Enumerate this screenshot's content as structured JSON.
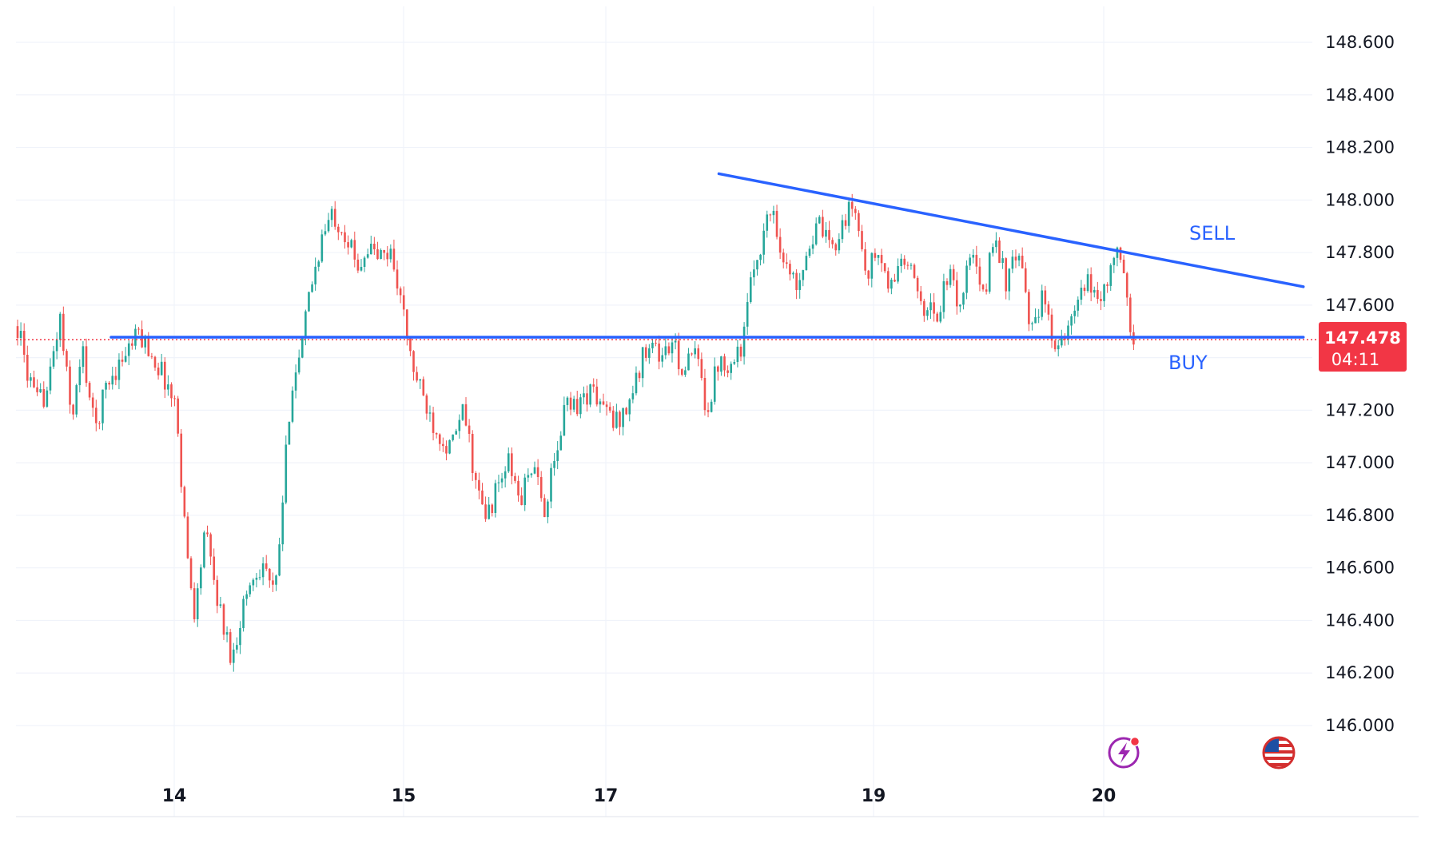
{
  "chart_data": {
    "type": "candlestick",
    "x_ticks": [
      "14",
      "15",
      "17",
      "19",
      "20"
    ],
    "y_ticks": [
      "148.600",
      "148.400",
      "148.200",
      "148.000",
      "147.800",
      "147.600",
      "147.400",
      "147.200",
      "147.000",
      "146.800",
      "146.600",
      "146.400",
      "146.200",
      "146.000"
    ],
    "ylim": [
      145.93,
      148.82
    ],
    "grid": true,
    "price_path": [
      [
        0.0,
        147.52
      ],
      [
        0.4,
        147.35
      ],
      [
        0.8,
        147.22
      ],
      [
        1.3,
        147.28
      ],
      [
        1.8,
        147.56
      ],
      [
        2.3,
        147.17
      ],
      [
        2.8,
        147.42
      ],
      [
        3.3,
        147.12
      ],
      [
        3.8,
        147.3
      ],
      [
        4.5,
        147.4
      ],
      [
        5.2,
        147.49
      ],
      [
        5.7,
        147.42
      ],
      [
        6.3,
        147.32
      ],
      [
        6.8,
        147.2
      ],
      [
        7.0,
        146.95
      ],
      [
        7.3,
        146.6
      ],
      [
        7.6,
        146.42
      ],
      [
        8.0,
        146.75
      ],
      [
        8.4,
        146.55
      ],
      [
        8.8,
        146.38
      ],
      [
        9.2,
        146.25
      ],
      [
        9.6,
        146.45
      ],
      [
        10.0,
        146.55
      ],
      [
        10.5,
        146.63
      ],
      [
        11.0,
        146.48
      ],
      [
        11.3,
        146.8
      ],
      [
        11.7,
        147.3
      ],
      [
        12.1,
        147.4
      ],
      [
        12.5,
        147.65
      ],
      [
        13.0,
        147.85
      ],
      [
        13.5,
        147.95
      ],
      [
        14.0,
        147.88
      ],
      [
        14.5,
        147.75
      ],
      [
        15.0,
        147.82
      ],
      [
        15.5,
        147.78
      ],
      [
        16.0,
        147.8
      ],
      [
        16.4,
        147.62
      ],
      [
        16.8,
        147.4
      ],
      [
        17.2,
        147.28
      ],
      [
        17.8,
        147.15
      ],
      [
        18.5,
        147.05
      ],
      [
        19.1,
        147.2
      ],
      [
        19.6,
        146.92
      ],
      [
        20.0,
        146.78
      ],
      [
        20.5,
        146.9
      ],
      [
        21.0,
        147.0
      ],
      [
        21.5,
        146.85
      ],
      [
        22.0,
        147.0
      ],
      [
        22.5,
        146.82
      ],
      [
        23.0,
        147.0
      ],
      [
        23.5,
        147.25
      ],
      [
        24.0,
        147.22
      ],
      [
        24.5,
        147.28
      ],
      [
        25.0,
        147.22
      ],
      [
        25.5,
        147.15
      ],
      [
        26.0,
        147.2
      ],
      [
        26.5,
        147.32
      ],
      [
        27.0,
        147.48
      ],
      [
        27.5,
        147.4
      ],
      [
        28.0,
        147.45
      ],
      [
        28.5,
        147.35
      ],
      [
        29.0,
        147.42
      ],
      [
        29.5,
        147.2
      ],
      [
        30.0,
        147.4
      ],
      [
        30.5,
        147.38
      ],
      [
        31.0,
        147.45
      ],
      [
        31.5,
        147.75
      ],
      [
        32.0,
        147.9
      ],
      [
        32.3,
        147.98
      ],
      [
        32.8,
        147.75
      ],
      [
        33.3,
        147.68
      ],
      [
        33.8,
        147.82
      ],
      [
        34.3,
        147.9
      ],
      [
        34.8,
        147.8
      ],
      [
        35.3,
        147.92
      ],
      [
        35.8,
        147.98
      ],
      [
        36.3,
        147.72
      ],
      [
        36.8,
        147.8
      ],
      [
        37.3,
        147.65
      ],
      [
        37.8,
        147.78
      ],
      [
        38.3,
        147.7
      ],
      [
        38.8,
        147.6
      ],
      [
        39.3,
        147.55
      ],
      [
        39.8,
        147.72
      ],
      [
        40.3,
        147.6
      ],
      [
        40.8,
        147.8
      ],
      [
        41.3,
        147.62
      ],
      [
        41.8,
        147.88
      ],
      [
        42.3,
        147.68
      ],
      [
        42.8,
        147.8
      ],
      [
        43.3,
        147.52
      ],
      [
        43.8,
        147.62
      ],
      [
        44.3,
        147.48
      ],
      [
        44.8,
        147.45
      ],
      [
        45.3,
        147.6
      ],
      [
        45.8,
        147.68
      ],
      [
        46.3,
        147.62
      ],
      [
        46.8,
        147.75
      ],
      [
        47.0,
        147.8
      ],
      [
        47.3,
        147.72
      ],
      [
        47.6,
        147.5
      ],
      [
        47.8,
        147.478
      ]
    ],
    "annotations": [
      {
        "kind": "trendline",
        "from": [
          30.0,
          148.1
        ],
        "to": [
          55.0,
          147.67
        ]
      },
      {
        "kind": "horizontal",
        "from": [
          4.0,
          147.478
        ],
        "to": [
          55.0,
          147.478
        ]
      }
    ],
    "labels": {
      "sell": "SELL",
      "buy": "BUY"
    },
    "last_price": {
      "value": "147.478",
      "countdown": "04:11"
    },
    "colors": {
      "up": "#26a69a",
      "down": "#ef5350",
      "line": "#2962ff",
      "badge": "#f23645",
      "grid": "#f0f3fa",
      "axis_text": "#131722"
    },
    "icons": [
      "lightning-alert-icon",
      "us-flag-icon"
    ]
  }
}
